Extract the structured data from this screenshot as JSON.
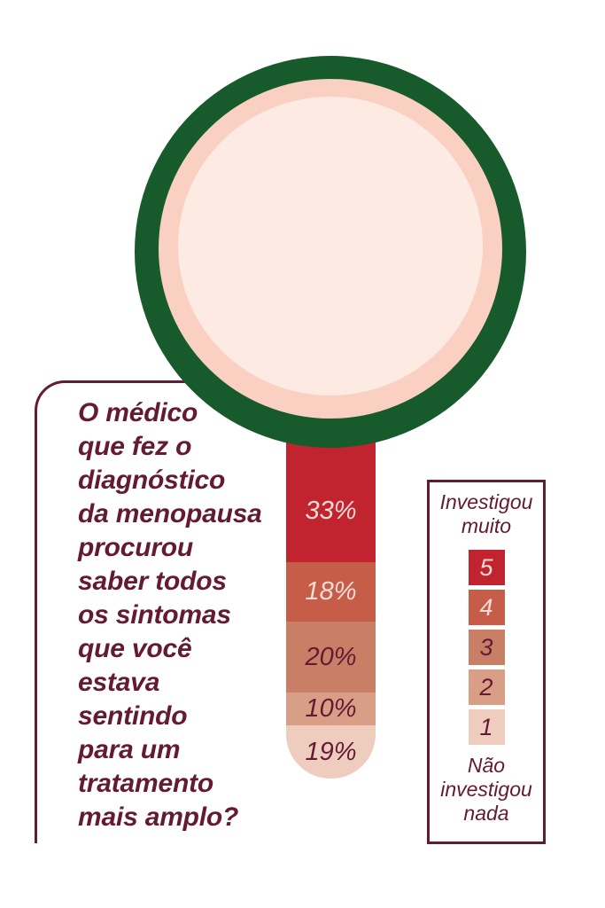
{
  "colors": {
    "maroon": "#641a33",
    "green_ring": "#175a2b",
    "pink_ring": "#f9d0c1",
    "lens": "#fdebe3",
    "light_label": "#f6dcd7",
    "background": "#ffffff"
  },
  "question": {
    "text": "O médico\nque fez o\ndiagnóstico\nda menopausa\nprocurou\nsaber todos\nos sintomas\nque você\nestava\nsentindo\npara um\ntratamento\nmais amplo?"
  },
  "legend": {
    "top_label": "Investigou\nmuito",
    "bottom_label": "Não\ninvestigou\nnada"
  },
  "chart_data": {
    "type": "bar",
    "title": "O médico que fez o diagnóstico da menopausa procurou saber todos os sintomas que você estava sentindo para um tratamento mais amplo?",
    "categories": [
      "5",
      "4",
      "3",
      "2",
      "1"
    ],
    "values": [
      33,
      18,
      20,
      10,
      19
    ],
    "values_display": [
      "33%",
      "18%",
      "20%",
      "10%",
      "19%"
    ],
    "scale_max_label": "Investigou muito",
    "scale_min_label": "Não investigou nada",
    "colors": [
      "#c2242f",
      "#c55d49",
      "#c97e66",
      "#d89e86",
      "#efcdbe"
    ],
    "label_colors": [
      "#f6dcd7",
      "#f6dcd7",
      "#641a33",
      "#641a33",
      "#641a33"
    ],
    "legend_position": "right",
    "orientation": "vertical-stack"
  }
}
